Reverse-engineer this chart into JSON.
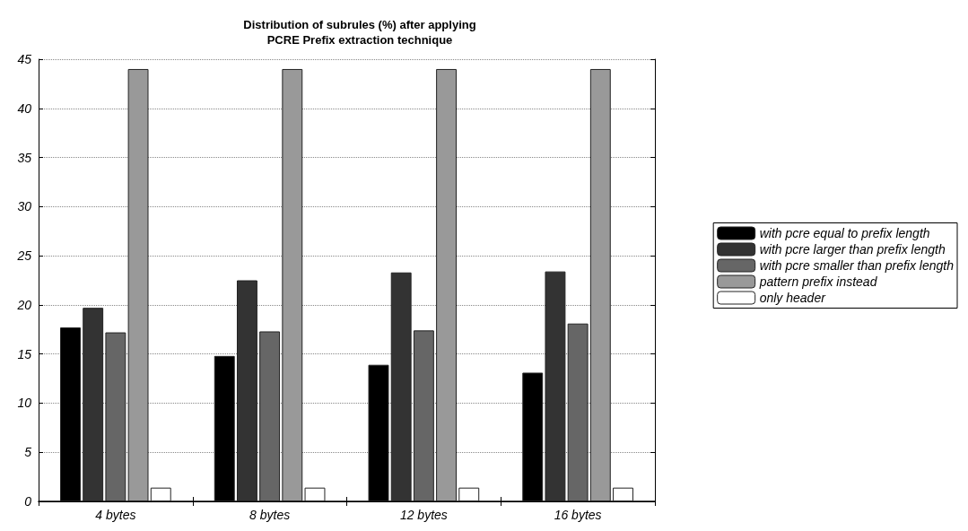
{
  "chart_data": {
    "type": "bar",
    "title": "Distribution of subrules (%) after applying\nPCRE Prefix extraction technique",
    "categories": [
      "4 bytes",
      "8 bytes",
      "12 bytes",
      "16 bytes"
    ],
    "series": [
      {
        "name": "with pcre equal to prefix length",
        "color": "#000000",
        "values": [
          17.7,
          14.8,
          13.9,
          13.1
        ]
      },
      {
        "name": "with pcre larger than prefix length",
        "color": "#333333",
        "values": [
          19.7,
          22.5,
          23.3,
          23.4
        ]
      },
      {
        "name": "with pcre smaller than prefix length",
        "color": "#666666",
        "values": [
          17.2,
          17.3,
          17.4,
          18.1
        ]
      },
      {
        "name": "pattern prefix instead",
        "color": "#999999",
        "values": [
          44,
          44,
          44,
          44
        ]
      },
      {
        "name": "only header",
        "color": "#ffffff",
        "values": [
          1.4,
          1.4,
          1.4,
          1.4
        ]
      }
    ],
    "ylim": [
      0,
      45
    ],
    "yticks": [
      0,
      5,
      10,
      15,
      20,
      25,
      30,
      35,
      40,
      45
    ],
    "grid": "y",
    "legend": "right"
  }
}
